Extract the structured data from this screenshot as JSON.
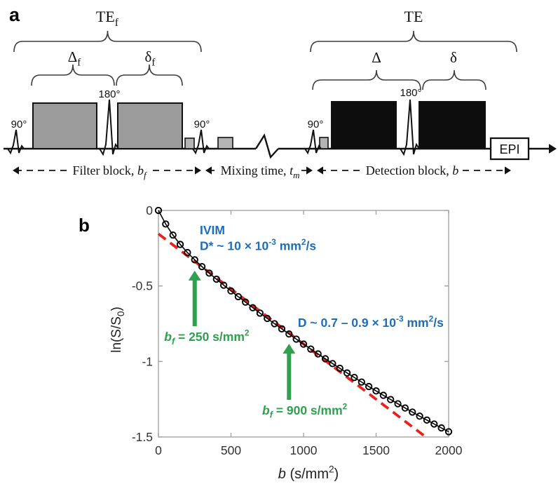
{
  "figure": {
    "panel_a": {
      "label": "a",
      "timing_labels": {
        "te_filter": {
          "base": "TE",
          "sub": "f"
        },
        "delta_filter": {
          "base": "Δ",
          "sub": "f"
        },
        "small_delta_filter": {
          "base": "δ",
          "sub": "f"
        },
        "te_detection": {
          "base": "TE",
          "sub": ""
        },
        "delta_detection": {
          "base": "Δ",
          "sub": ""
        },
        "small_delta_detection": {
          "base": "δ",
          "sub": ""
        }
      },
      "rf_pulse_labels": {
        "excitation": "90°",
        "refocusing": "180°"
      },
      "readout_label": "EPI",
      "span_labels": {
        "filter": [
          {
            "t": "Filter block, "
          },
          {
            "t": "b",
            "s": "i"
          },
          {
            "t": "f",
            "s": "isub"
          }
        ],
        "mixing": [
          {
            "t": "Mixing time, "
          },
          {
            "t": "t",
            "s": "i"
          },
          {
            "t": "m",
            "s": "isub"
          }
        ],
        "detection": [
          {
            "t": "Detection block, "
          },
          {
            "t": "b",
            "s": "i"
          }
        ]
      }
    },
    "panel_b": {
      "label": "b",
      "chart_data": {
        "type": "line",
        "xlabel": [
          {
            "t": "b",
            "s": "i"
          },
          {
            "t": "  (s/mm"
          },
          {
            "t": "2",
            "s": "sup"
          },
          {
            "t": ")"
          }
        ],
        "ylabel": [
          {
            "t": "ln(S/S"
          },
          {
            "t": "0",
            "s": "sub"
          },
          {
            "t": ")"
          }
        ],
        "xlim": [
          0,
          2000
        ],
        "ylim": [
          -1.5,
          0
        ],
        "xticks": {
          "values": [
            0,
            500,
            1000,
            1500,
            2000
          ],
          "labels": [
            "0",
            "500",
            "1000",
            "1500",
            "2000"
          ]
        },
        "yticks": {
          "values": [
            0,
            -0.5,
            -1,
            -1.5
          ],
          "labels": [
            "0",
            "-0.5",
            "-1",
            "-1.5"
          ]
        },
        "grid": false,
        "legend": null,
        "series": [
          {
            "name": "diffusion-signal-data",
            "type": "line+markers",
            "marker": "open-circle",
            "color": "#000000",
            "x": [
              0,
              50,
              100,
              150,
              200,
              250,
              300,
              350,
              400,
              450,
              500,
              550,
              600,
              650,
              700,
              750,
              800,
              850,
              900,
              950,
              1000,
              1050,
              1100,
              1150,
              1200,
              1250,
              1300,
              1350,
              1400,
              1450,
              1500,
              1550,
              1600,
              1650,
              1700,
              1750,
              1800,
              1850,
              1900,
              1950,
              2000
            ],
            "y": [
              0.0,
              -0.09,
              -0.163,
              -0.225,
              -0.279,
              -0.327,
              -0.372,
              -0.415,
              -0.455,
              -0.495,
              -0.533,
              -0.571,
              -0.607,
              -0.644,
              -0.68,
              -0.715,
              -0.75,
              -0.784,
              -0.818,
              -0.852,
              -0.885,
              -0.918,
              -0.95,
              -0.982,
              -1.014,
              -1.045,
              -1.076,
              -1.106,
              -1.136,
              -1.166,
              -1.195,
              -1.224,
              -1.252,
              -1.28,
              -1.308,
              -1.335,
              -1.362,
              -1.388,
              -1.414,
              -1.44,
              -1.465
            ]
          },
          {
            "name": "monoexponential-fit-extrapolated",
            "type": "dashed-line",
            "color": "#e8231f",
            "x": [
              0,
              1830
            ],
            "y": [
              -0.155,
              -1.491
            ]
          }
        ],
        "annotations": {
          "texts": [
            {
              "id": "ivim-title",
              "color_key": "blue",
              "x": 285,
              "y": -0.158,
              "segs": [
                {
                  "t": "IVIM"
                }
              ]
            },
            {
              "id": "ivim-dstar",
              "color_key": "blue",
              "x": 285,
              "y": -0.262,
              "segs": [
                {
                  "t": "D* ~ 10 × 10"
                },
                {
                  "t": "-3",
                  "s": "sup"
                },
                {
                  "t": " mm"
                },
                {
                  "t": "2",
                  "s": "sup"
                },
                {
                  "t": "/s"
                }
              ]
            },
            {
              "id": "d-slow",
              "color_key": "blue",
              "x": 961,
              "y": -0.771,
              "segs": [
                {
                  "t": "D ~ 0.7 – 0.9 × 10"
                },
                {
                  "t": "-3",
                  "s": "sup"
                },
                {
                  "t": " mm"
                },
                {
                  "t": "2",
                  "s": "sup"
                },
                {
                  "t": "/s"
                }
              ]
            },
            {
              "id": "bf-250",
              "color_key": "green",
              "x": 40,
              "y": -0.864,
              "segs": [
                {
                  "t": "b",
                  "s": "i"
                },
                {
                  "t": "f",
                  "s": "isub"
                },
                {
                  "t": " = 250 s/mm"
                },
                {
                  "t": "2",
                  "s": "sup"
                }
              ]
            },
            {
              "id": "bf-900",
              "color_key": "green",
              "x": 715,
              "y": -1.351,
              "segs": [
                {
                  "t": "b",
                  "s": "i"
                },
                {
                  "t": "f",
                  "s": "isub"
                },
                {
                  "t": " = 900 s/mm"
                },
                {
                  "t": "2",
                  "s": "sup"
                }
              ]
            }
          ],
          "arrows": [
            {
              "id": "arrow-bf-250",
              "x": 250,
              "y_tail": -0.766,
              "y_tip": -0.399
            },
            {
              "id": "arrow-bf-900",
              "x": 900,
              "y_tail": -1.254,
              "y_tip": -0.883
            }
          ]
        }
      }
    }
  },
  "colors": {
    "ink": "#111111",
    "brace": "#3d3d3d",
    "gradient_gray": "#9b9b9b",
    "crusher_gray": "#b4b4b4",
    "block_black": "#0d0d0d",
    "axis_gray": "#9f9f9f",
    "tick_text": "#333333",
    "accent_blue": "#1f6eb5",
    "accent_green": "#2da14d",
    "fit_red": "#e8231f"
  }
}
